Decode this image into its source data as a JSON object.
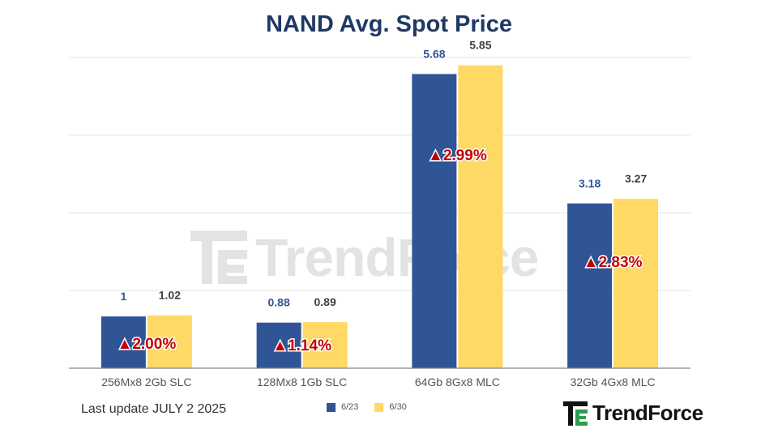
{
  "chart_data": {
    "type": "bar",
    "title": "NAND Avg. Spot Price",
    "categories": [
      "256Mx8 2Gb SLC",
      "128Mx8 1Gb SLC",
      "64Gb 8Gx8 MLC",
      "32Gb 4Gx8 MLC"
    ],
    "series": [
      {
        "name": "6/23",
        "values": [
          1,
          0.88,
          5.68,
          3.18
        ],
        "labels": [
          "1",
          "0.88",
          "5.68",
          "3.18"
        ],
        "color": "#2f5597"
      },
      {
        "name": "6/30",
        "values": [
          1.02,
          0.89,
          5.85,
          3.27
        ],
        "labels": [
          "1.02",
          "0.89",
          "5.85",
          "3.27"
        ],
        "color": "#ffd966"
      }
    ],
    "annotations": [
      "▲2.00%",
      "▲1.14%",
      "▲2.99%",
      "▲2.83%"
    ],
    "ylim": [
      0,
      6
    ],
    "grid": true,
    "legend_position": "bottom"
  },
  "footer": {
    "last_update": "Last update JULY 2 2025"
  },
  "brand": {
    "name": "TrendForce",
    "watermark": "TrendForce"
  },
  "colors": {
    "title": "#1f3864",
    "annotation": "#c00000",
    "label_series1": "#2f5597",
    "label_series2": "#404040"
  }
}
